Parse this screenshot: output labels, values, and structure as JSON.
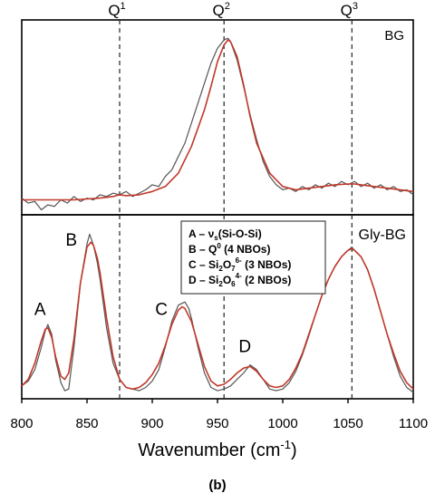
{
  "chart_data": [
    {
      "type": "line",
      "panel": "BG",
      "xlim": [
        800,
        1100
      ],
      "peak_markers": [
        {
          "x": 875,
          "label": "Q",
          "sup": "1"
        },
        {
          "x": 955,
          "label": "Q",
          "sup": "2"
        },
        {
          "x": 1053,
          "label": "Q",
          "sup": "3"
        }
      ],
      "series": [
        {
          "color": "#555555",
          "x": [
            800,
            805,
            810,
            815,
            820,
            825,
            830,
            835,
            840,
            845,
            850,
            855,
            860,
            865,
            870,
            875,
            880,
            885,
            890,
            895,
            900,
            905,
            910,
            915,
            920,
            925,
            930,
            935,
            940,
            945,
            950,
            955,
            958,
            960,
            965,
            970,
            975,
            980,
            985,
            990,
            995,
            1000,
            1005,
            1010,
            1015,
            1020,
            1025,
            1030,
            1035,
            1040,
            1045,
            1050,
            1055,
            1060,
            1065,
            1070,
            1075,
            1080,
            1085,
            1090,
            1095,
            1100
          ],
          "y": [
            0.05,
            0.02,
            0.03,
            -0.02,
            0.01,
            0.0,
            0.04,
            0.02,
            0.06,
            0.03,
            0.05,
            0.04,
            0.07,
            0.06,
            0.08,
            0.07,
            0.09,
            0.06,
            0.08,
            0.1,
            0.13,
            0.12,
            0.18,
            0.22,
            0.3,
            0.38,
            0.5,
            0.62,
            0.74,
            0.86,
            0.95,
            1.0,
            1.01,
            0.99,
            0.88,
            0.72,
            0.55,
            0.4,
            0.27,
            0.18,
            0.13,
            0.1,
            0.11,
            0.09,
            0.12,
            0.1,
            0.13,
            0.11,
            0.14,
            0.12,
            0.15,
            0.13,
            0.15,
            0.12,
            0.14,
            0.11,
            0.13,
            0.1,
            0.12,
            0.09,
            0.1,
            0.07
          ]
        },
        {
          "color": "#c0392b",
          "x": [
            800,
            810,
            820,
            830,
            840,
            850,
            860,
            870,
            875,
            880,
            890,
            900,
            910,
            920,
            930,
            940,
            945,
            950,
            955,
            958,
            960,
            965,
            970,
            975,
            980,
            990,
            1000,
            1010,
            1020,
            1030,
            1040,
            1050,
            1055,
            1060,
            1070,
            1080,
            1090,
            1100
          ],
          "y": [
            0.04,
            0.04,
            0.04,
            0.04,
            0.04,
            0.045,
            0.05,
            0.06,
            0.07,
            0.065,
            0.07,
            0.09,
            0.12,
            0.2,
            0.36,
            0.58,
            0.72,
            0.87,
            0.97,
            1.0,
            0.99,
            0.9,
            0.73,
            0.54,
            0.38,
            0.2,
            0.12,
            0.1,
            0.11,
            0.12,
            0.13,
            0.135,
            0.135,
            0.13,
            0.12,
            0.11,
            0.1,
            0.09
          ]
        }
      ]
    },
    {
      "type": "line",
      "panel": "Gly-BG",
      "xlim": [
        800,
        1100
      ],
      "xlabel": "Wavenumber (cm",
      "xlabel_sup": "-1",
      "xlabel_tail": ")",
      "xticks": [
        800,
        850,
        900,
        950,
        1000,
        1050,
        1100
      ],
      "tick_labels": [
        "800",
        "850",
        "900",
        "950",
        "1000",
        "1050",
        "1100"
      ],
      "peak_markers": [
        {
          "x": 875
        },
        {
          "x": 955
        },
        {
          "x": 1053
        }
      ],
      "annotations": [
        {
          "text": "A",
          "x": 814,
          "y": 0.5
        },
        {
          "text": "B",
          "x": 838,
          "y": 0.93
        },
        {
          "text": "C",
          "x": 907,
          "y": 0.5
        },
        {
          "text": "D",
          "x": 971,
          "y": 0.27
        }
      ],
      "series": [
        {
          "color": "#555555",
          "x": [
            800,
            805,
            810,
            815,
            818,
            820,
            823,
            826,
            830,
            833,
            836,
            840,
            845,
            850,
            852,
            855,
            858,
            860,
            865,
            870,
            875,
            880,
            885,
            890,
            895,
            900,
            905,
            910,
            915,
            920,
            925,
            928,
            930,
            935,
            940,
            945,
            950,
            955,
            960,
            965,
            970,
            975,
            980,
            985,
            990,
            995,
            1000,
            1005,
            1010,
            1015,
            1020,
            1025,
            1030,
            1035,
            1040,
            1045,
            1050,
            1053,
            1055,
            1060,
            1065,
            1070,
            1075,
            1080,
            1085,
            1090,
            1095,
            1100
          ],
          "y": [
            0.06,
            0.09,
            0.16,
            0.3,
            0.4,
            0.44,
            0.38,
            0.22,
            0.08,
            0.03,
            0.04,
            0.3,
            0.7,
            0.94,
            1.0,
            0.93,
            0.82,
            0.72,
            0.42,
            0.2,
            0.1,
            0.05,
            0.04,
            0.03,
            0.05,
            0.09,
            0.16,
            0.3,
            0.46,
            0.56,
            0.58,
            0.54,
            0.48,
            0.3,
            0.14,
            0.05,
            0.03,
            0.04,
            0.06,
            0.1,
            0.14,
            0.19,
            0.16,
            0.1,
            0.04,
            0.03,
            0.04,
            0.08,
            0.15,
            0.25,
            0.37,
            0.5,
            0.62,
            0.72,
            0.8,
            0.86,
            0.9,
            0.92,
            0.9,
            0.86,
            0.78,
            0.66,
            0.52,
            0.38,
            0.24,
            0.12,
            0.05,
            0.02
          ]
        },
        {
          "color": "#c0392b",
          "x": [
            800,
            805,
            810,
            815,
            818,
            820,
            823,
            826,
            830,
            833,
            836,
            840,
            845,
            850,
            853,
            855,
            858,
            860,
            865,
            870,
            875,
            880,
            885,
            890,
            895,
            900,
            905,
            910,
            915,
            920,
            923,
            925,
            930,
            935,
            940,
            945,
            950,
            955,
            960,
            965,
            970,
            975,
            980,
            985,
            990,
            995,
            1000,
            1005,
            1010,
            1015,
            1020,
            1025,
            1030,
            1035,
            1040,
            1045,
            1050,
            1053,
            1055,
            1060,
            1065,
            1070,
            1075,
            1080,
            1085,
            1090,
            1095,
            1100
          ],
          "y": [
            0.06,
            0.1,
            0.2,
            0.34,
            0.41,
            0.42,
            0.36,
            0.24,
            0.12,
            0.1,
            0.14,
            0.35,
            0.7,
            0.92,
            0.95,
            0.93,
            0.85,
            0.76,
            0.48,
            0.24,
            0.1,
            0.05,
            0.04,
            0.05,
            0.08,
            0.13,
            0.2,
            0.31,
            0.44,
            0.53,
            0.55,
            0.54,
            0.46,
            0.32,
            0.18,
            0.09,
            0.06,
            0.07,
            0.1,
            0.14,
            0.17,
            0.18,
            0.15,
            0.1,
            0.06,
            0.05,
            0.06,
            0.1,
            0.17,
            0.26,
            0.38,
            0.5,
            0.62,
            0.72,
            0.8,
            0.86,
            0.9,
            0.91,
            0.9,
            0.86,
            0.78,
            0.66,
            0.52,
            0.38,
            0.26,
            0.15,
            0.08,
            0.04
          ]
        }
      ]
    }
  ],
  "panel_labels": {
    "top": "BG",
    "bottom": "Gly-BG"
  },
  "legend": {
    "lines": [
      {
        "lead": "A – ν",
        "sub": "s",
        "tail": "(Si-O-Si)",
        "sup": ""
      },
      {
        "lead": "B – Q",
        "sub": "",
        "tail": " (4 NBOs)",
        "sup": "0"
      },
      {
        "lead": "C – Si",
        "sub": "2",
        "mid": "O",
        "sub2": "7",
        "sup": "6-",
        "tail": " (3 NBOs)"
      },
      {
        "lead": "D – Si",
        "sub": "2",
        "mid": "O",
        "sub2": "6",
        "sup": "4-",
        "tail": " (2 NBOs)"
      }
    ]
  },
  "figure_caption": "(b)"
}
